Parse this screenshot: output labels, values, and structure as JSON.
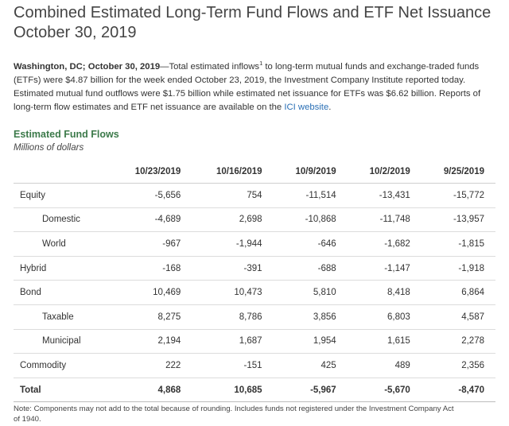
{
  "title": "Combined Estimated Long-Term Fund Flows and ETF Net Issuance October 30, 2019",
  "intro": {
    "dateline": "Washington, DC; October 30, 2019",
    "text_before_sup": "—Total estimated inflows",
    "sup": "1",
    "text_after_sup": " to long-term mutual funds and exchange-traded funds (ETFs) were $4.87 billion for the week ended October 23, 2019, the Investment Company Institute reported today. Estimated mutual fund outflows were $1.75 billion while estimated net issuance for ETFs was $6.62 billion. Reports of long-term flow estimates and ETF net issuance are available on the ",
    "link_text": "ICI website",
    "end": "."
  },
  "table": {
    "title": "Estimated Fund Flows",
    "subtitle": "Millions of dollars",
    "columns": [
      "10/23/2019",
      "10/16/2019",
      "10/9/2019",
      "10/2/2019",
      "9/25/2019"
    ],
    "rows": [
      {
        "label": "Equity",
        "indent": false,
        "total": false,
        "values": [
          "-5,656",
          "754",
          "-11,514",
          "-13,431",
          "-15,772"
        ]
      },
      {
        "label": "Domestic",
        "indent": true,
        "total": false,
        "values": [
          "-4,689",
          "2,698",
          "-10,868",
          "-11,748",
          "-13,957"
        ]
      },
      {
        "label": "World",
        "indent": true,
        "total": false,
        "values": [
          "-967",
          "-1,944",
          "-646",
          "-1,682",
          "-1,815"
        ]
      },
      {
        "label": "Hybrid",
        "indent": false,
        "total": false,
        "values": [
          "-168",
          "-391",
          "-688",
          "-1,147",
          "-1,918"
        ]
      },
      {
        "label": "Bond",
        "indent": false,
        "total": false,
        "values": [
          "10,469",
          "10,473",
          "5,810",
          "8,418",
          "6,864"
        ]
      },
      {
        "label": "Taxable",
        "indent": true,
        "total": false,
        "values": [
          "8,275",
          "8,786",
          "3,856",
          "6,803",
          "4,587"
        ]
      },
      {
        "label": "Municipal",
        "indent": true,
        "total": false,
        "values": [
          "2,194",
          "1,687",
          "1,954",
          "1,615",
          "2,278"
        ]
      },
      {
        "label": "Commodity",
        "indent": false,
        "total": false,
        "values": [
          "222",
          "-151",
          "425",
          "489",
          "2,356"
        ]
      },
      {
        "label": "Total",
        "indent": false,
        "total": true,
        "values": [
          "4,868",
          "10,685",
          "-5,967",
          "-5,670",
          "-8,470"
        ]
      }
    ]
  },
  "note": "Note: Components may not add to the total because of rounding. Includes funds not registered under the Investment Company Act of 1940.",
  "colors": {
    "heading_green": "#3c7a4a",
    "link_blue": "#2a6fb5"
  }
}
